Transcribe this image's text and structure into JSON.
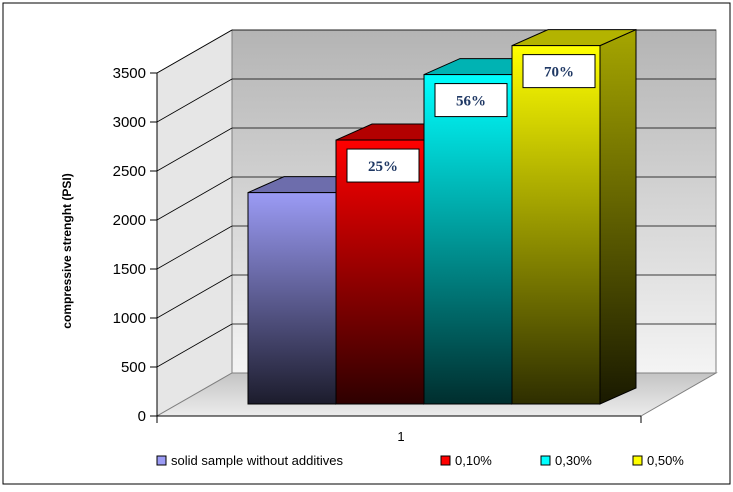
{
  "chart_data": {
    "type": "bar",
    "title": "",
    "xlabel": "",
    "ylabel": "compressive strenght (PSI)",
    "categories": [
      "1"
    ],
    "ylim": [
      0,
      3500
    ],
    "yticks": [
      0,
      500,
      1000,
      1500,
      2000,
      2500,
      3000,
      3500
    ],
    "grid": true,
    "legend_position": "bottom",
    "series": [
      {
        "name": "solid sample without additives",
        "values": [
          1970
        ],
        "color": "#9b9bf5",
        "data_label": ""
      },
      {
        "name": "0,10%",
        "values": [
          2460
        ],
        "color": "#ff0000",
        "data_label": "25%"
      },
      {
        "name": "0,30%",
        "values": [
          3070
        ],
        "color": "#00ffff",
        "data_label": "56%"
      },
      {
        "name": "0,50%",
        "values": [
          3340
        ],
        "color": "#ffff00",
        "data_label": "70%"
      }
    ]
  }
}
